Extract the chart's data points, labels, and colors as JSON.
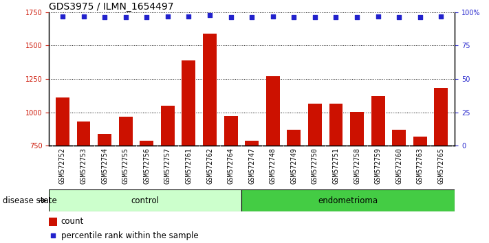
{
  "title": "GDS3975 / ILMN_1654497",
  "samples": [
    "GSM572752",
    "GSM572753",
    "GSM572754",
    "GSM572755",
    "GSM572756",
    "GSM572757",
    "GSM572761",
    "GSM572762",
    "GSM572764",
    "GSM572747",
    "GSM572748",
    "GSM572749",
    "GSM572750",
    "GSM572751",
    "GSM572758",
    "GSM572759",
    "GSM572760",
    "GSM572763",
    "GSM572765"
  ],
  "counts": [
    1110,
    930,
    840,
    970,
    790,
    1050,
    1390,
    1590,
    975,
    790,
    1270,
    870,
    1065,
    1065,
    1005,
    1120,
    870,
    820,
    1185
  ],
  "percentile_ranks": [
    97,
    97,
    96,
    96,
    96,
    97,
    97,
    98,
    96,
    96,
    97,
    96,
    96,
    96,
    96,
    97,
    96,
    96,
    97
  ],
  "control_count": 9,
  "endometrioma_count": 10,
  "ylim_left": [
    750,
    1750
  ],
  "ylim_right": [
    0,
    100
  ],
  "yticks_left": [
    750,
    1000,
    1250,
    1500,
    1750
  ],
  "yticks_right": [
    0,
    25,
    50,
    75,
    100
  ],
  "bar_color": "#cc1100",
  "dot_color": "#2222cc",
  "control_color": "#ccffcc",
  "endometrioma_color": "#44cc44",
  "plot_bg_color": "#ffffff",
  "tick_area_color": "#cccccc",
  "grid_color": "#000000",
  "title_fontsize": 10,
  "tick_fontsize": 7,
  "label_fontsize": 8.5
}
